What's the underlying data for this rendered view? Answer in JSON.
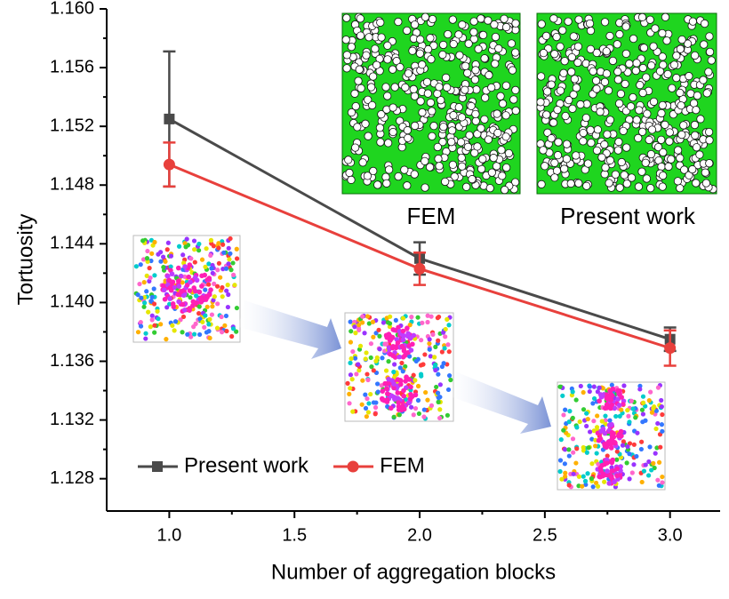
{
  "chart_data": {
    "type": "line",
    "x_label": "Number of aggregation blocks",
    "y_label": "Tortuosity",
    "x": [
      1,
      2,
      3
    ],
    "series": [
      {
        "name": "Present work",
        "color": "#4a4a4a",
        "marker": "square",
        "values": [
          1.1525,
          1.143,
          1.1375
        ],
        "errors": [
          0.0046,
          0.0011,
          0.0008
        ]
      },
      {
        "name": "FEM",
        "color": "#e8403c",
        "marker": "circle",
        "values": [
          1.1494,
          1.1423,
          1.1369
        ],
        "errors": [
          0.0015,
          0.0011,
          0.0012
        ]
      }
    ],
    "xlim": [
      0.75,
      3.2
    ],
    "xticks": [
      {
        "value": 1,
        "label": "1.0"
      },
      {
        "value": 1.5,
        "label": "1.5"
      },
      {
        "value": 2,
        "label": "2.0"
      },
      {
        "value": 2.5,
        "label": "2.5"
      },
      {
        "value": 3,
        "label": "3.0"
      }
    ],
    "ylim": [
      1.1258,
      1.16
    ],
    "yticks": [
      {
        "value": 1.128,
        "label": "1.128"
      },
      {
        "value": 1.132,
        "label": "1.132"
      },
      {
        "value": 1.136,
        "label": "1.136"
      },
      {
        "value": 1.14,
        "label": "1.140"
      },
      {
        "value": 1.144,
        "label": "1.144"
      },
      {
        "value": 1.148,
        "label": "1.148"
      },
      {
        "value": 1.152,
        "label": "1.152"
      },
      {
        "value": 1.156,
        "label": "1.156"
      },
      {
        "value": 1.16,
        "label": "1.160"
      }
    ],
    "legend": "lower left",
    "annotations": [
      "FEM",
      "Present work"
    ]
  }
}
